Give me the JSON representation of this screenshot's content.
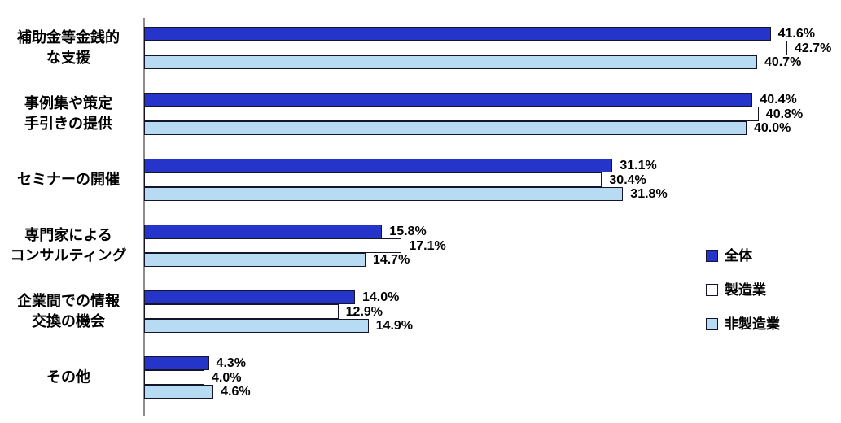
{
  "chart_data": {
    "type": "bar",
    "orientation": "horizontal",
    "title": "",
    "xlabel": "",
    "ylabel": "",
    "xlim": [
      0,
      45
    ],
    "grid": false,
    "legend_position": "right",
    "value_label_suffix": "%",
    "categories": [
      "補助金等金銭的\nな支援",
      "事例集や策定\n手引きの提供",
      "セミナーの開催",
      "専門家による\nコンサルティング",
      "企業間での情報\n交換の機会",
      "その他"
    ],
    "series": [
      {
        "name": "全体",
        "color": "#2635c9",
        "values": [
          41.6,
          40.4,
          31.1,
          15.8,
          14.0,
          4.3
        ]
      },
      {
        "name": "製造業",
        "color": "#ffffff",
        "values": [
          42.7,
          40.8,
          30.4,
          17.1,
          12.9,
          4.0
        ]
      },
      {
        "name": "非製造業",
        "color": "#b7dbf3",
        "values": [
          40.7,
          40.0,
          31.8,
          14.7,
          14.9,
          4.6
        ]
      }
    ]
  },
  "colors": {
    "axis_line": "#8c8c8c",
    "bar_border": "#14142b",
    "text": "#000000",
    "background": "#ffffff"
  }
}
